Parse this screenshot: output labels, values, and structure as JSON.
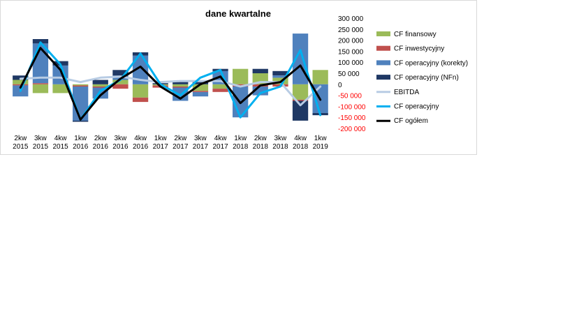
{
  "chart_data": {
    "type": "bar",
    "title": "dane kwartalne",
    "xlabel": "",
    "ylabel": "",
    "ylim": [
      -200000,
      300000
    ],
    "yticks": [
      300000,
      250000,
      200000,
      150000,
      100000,
      50000,
      0,
      -50000,
      -100000,
      -150000,
      -200000
    ],
    "ytick_labels": [
      "300 000",
      "250 000",
      "200 000",
      "150 000",
      "100 000",
      "50 000",
      "0",
      "-50 000",
      "-100 000",
      "-150 000",
      "-200 000"
    ],
    "negative_tick_color": "#ff0000",
    "grid": false,
    "legend_position": "right",
    "categories": [
      [
        "2kw",
        "2015"
      ],
      [
        "3kw",
        "2015"
      ],
      [
        "4kw",
        "2015"
      ],
      [
        "1kw",
        "2016"
      ],
      [
        "2kw",
        "2016"
      ],
      [
        "3kw",
        "2016"
      ],
      [
        "4kw",
        "2016"
      ],
      [
        "1kw",
        "2017"
      ],
      [
        "2kw",
        "2017"
      ],
      [
        "3kw",
        "2017"
      ],
      [
        "4kw",
        "2017"
      ],
      [
        "1kw",
        "2018"
      ],
      [
        "2kw",
        "2018"
      ],
      [
        "3kw",
        "2018"
      ],
      [
        "4kw",
        "2018"
      ],
      [
        "1kw",
        "2019"
      ]
    ],
    "bar_series": [
      {
        "name": "CF finansowy",
        "color": "#9bbb59",
        "values": [
          20000,
          -40000,
          -40000,
          -5000,
          -10000,
          20000,
          -60000,
          -5000,
          -10000,
          -30000,
          -20000,
          70000,
          50000,
          30000,
          -70000,
          65000
        ]
      },
      {
        "name": "CF inwestycyjny",
        "color": "#c0504d",
        "values": [
          -5000,
          5000,
          0,
          -5000,
          -5000,
          -20000,
          -20000,
          -10000,
          -5000,
          -5000,
          -15000,
          -10000,
          -10000,
          -10000,
          -5000,
          0
        ]
      },
      {
        "name": "CF operacyjny (korekty)",
        "color": "#4f81bd",
        "values": [
          -50000,
          180000,
          85000,
          -155000,
          -50000,
          20000,
          130000,
          0,
          -60000,
          -20000,
          60000,
          -140000,
          -40000,
          10000,
          230000,
          -130000
        ]
      },
      {
        "name": "CF operacyjny (NFn)",
        "color": "#1f3864",
        "values": [
          20000,
          20000,
          20000,
          -5000,
          20000,
          25000,
          15000,
          5000,
          10000,
          10000,
          10000,
          0,
          20000,
          20000,
          -90000,
          -10000
        ]
      }
    ],
    "line_series": [
      {
        "name": "EBITDA",
        "color": "#b8cce4",
        "values": [
          25000,
          30000,
          30000,
          10000,
          30000,
          35000,
          20000,
          10000,
          15000,
          15000,
          15000,
          -10000,
          10000,
          10000,
          -95000,
          -10000
        ]
      },
      {
        "name": "CF operacyjny",
        "color": "#00b0f0",
        "values": [
          -30000,
          190000,
          90000,
          -160000,
          -30000,
          20000,
          140000,
          0,
          -50000,
          30000,
          65000,
          -150000,
          -40000,
          -10000,
          155000,
          -140000
        ]
      },
      {
        "name": "CF ogółem",
        "color": "#000000",
        "values": [
          -15000,
          165000,
          65000,
          -160000,
          -50000,
          25000,
          80000,
          -10000,
          -65000,
          0,
          35000,
          -85000,
          -5000,
          10000,
          85000,
          -70000
        ]
      }
    ]
  }
}
